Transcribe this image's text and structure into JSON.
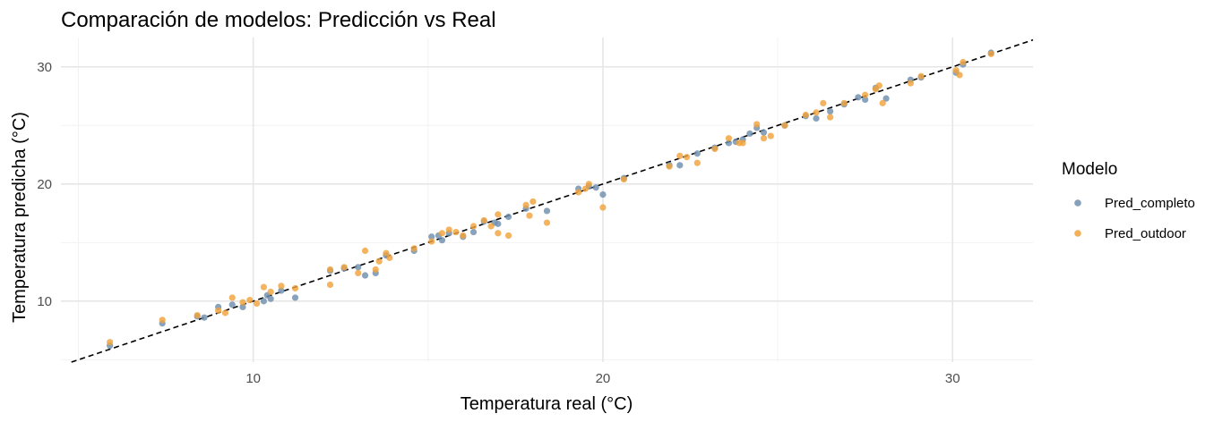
{
  "chart_data": {
    "type": "scatter",
    "title": "Comparación de modelos: Predicción vs Real",
    "xlabel": "Temperatura real (°C)",
    "ylabel": "Temperatura predicha (°C)",
    "xlim": [
      4.5,
      32.3
    ],
    "ylim": [
      4.8,
      32.5
    ],
    "x_ticks": [
      10,
      20,
      30
    ],
    "y_ticks": [
      10,
      20,
      30
    ],
    "grid": true,
    "reference_line": {
      "type": "identity",
      "style": "dashed",
      "color": "#000000"
    },
    "legend": {
      "title": "Modelo",
      "position": "right"
    },
    "series": [
      {
        "name": "Pred_completo",
        "color": "#6f8fae",
        "points": [
          [
            5.9,
            6.2
          ],
          [
            7.4,
            8.1
          ],
          [
            8.4,
            8.7
          ],
          [
            9.0,
            9.5
          ],
          [
            9.4,
            9.7
          ],
          [
            9.7,
            9.5
          ],
          [
            10.3,
            10.0
          ],
          [
            10.5,
            10.2
          ],
          [
            10.8,
            10.9
          ],
          [
            11.2,
            10.3
          ],
          [
            12.2,
            12.6
          ],
          [
            12.6,
            12.8
          ],
          [
            13.2,
            12.2
          ],
          [
            13.5,
            12.4
          ],
          [
            13.8,
            13.9
          ],
          [
            14.6,
            14.3
          ],
          [
            15.1,
            15.5
          ],
          [
            15.4,
            15.2
          ],
          [
            15.6,
            15.8
          ],
          [
            16.0,
            15.5
          ],
          [
            16.3,
            15.9
          ],
          [
            16.6,
            16.8
          ],
          [
            17.0,
            16.6
          ],
          [
            17.3,
            17.2
          ],
          [
            17.8,
            17.9
          ],
          [
            18.4,
            17.7
          ],
          [
            19.3,
            19.6
          ],
          [
            19.6,
            19.8
          ],
          [
            20.0,
            19.1
          ],
          [
            20.6,
            20.5
          ],
          [
            21.9,
            21.6
          ],
          [
            22.2,
            21.6
          ],
          [
            22.7,
            22.6
          ],
          [
            23.2,
            23.1
          ],
          [
            23.6,
            23.5
          ],
          [
            24.0,
            23.8
          ],
          [
            24.4,
            24.8
          ],
          [
            24.6,
            24.4
          ],
          [
            25.2,
            25.0
          ],
          [
            25.8,
            25.8
          ],
          [
            26.1,
            25.6
          ],
          [
            26.5,
            26.2
          ],
          [
            26.9,
            26.8
          ],
          [
            27.5,
            27.2
          ],
          [
            27.8,
            28.2
          ],
          [
            28.1,
            27.3
          ],
          [
            28.8,
            28.9
          ],
          [
            29.1,
            29.1
          ],
          [
            30.1,
            29.5
          ],
          [
            30.3,
            30.2
          ],
          [
            31.1,
            31.2
          ],
          [
            8.6,
            8.6
          ],
          [
            10.4,
            10.5
          ],
          [
            13.0,
            12.9
          ],
          [
            15.3,
            15.6
          ],
          [
            16.9,
            16.7
          ],
          [
            24.2,
            24.3
          ],
          [
            27.3,
            27.4
          ],
          [
            23.8,
            23.6
          ],
          [
            19.8,
            19.7
          ]
        ]
      },
      {
        "name": "Pred_outdoor",
        "color": "#f0a23c",
        "points": [
          [
            5.9,
            6.5
          ],
          [
            7.4,
            8.4
          ],
          [
            8.4,
            8.8
          ],
          [
            9.0,
            9.2
          ],
          [
            9.4,
            10.3
          ],
          [
            9.7,
            9.9
          ],
          [
            9.9,
            10.1
          ],
          [
            10.3,
            11.2
          ],
          [
            10.5,
            10.8
          ],
          [
            10.8,
            11.3
          ],
          [
            11.2,
            11.1
          ],
          [
            12.2,
            11.4
          ],
          [
            12.2,
            12.7
          ],
          [
            12.6,
            12.9
          ],
          [
            13.0,
            12.4
          ],
          [
            13.2,
            14.3
          ],
          [
            13.5,
            12.7
          ],
          [
            13.8,
            14.1
          ],
          [
            14.6,
            14.5
          ],
          [
            15.1,
            15.1
          ],
          [
            15.4,
            15.8
          ],
          [
            15.6,
            16.1
          ],
          [
            16.0,
            15.6
          ],
          [
            16.3,
            16.4
          ],
          [
            16.6,
            16.9
          ],
          [
            17.0,
            15.8
          ],
          [
            17.3,
            15.6
          ],
          [
            17.0,
            17.4
          ],
          [
            17.8,
            18.2
          ],
          [
            18.0,
            18.5
          ],
          [
            18.4,
            16.7
          ],
          [
            19.3,
            19.3
          ],
          [
            19.6,
            20.0
          ],
          [
            20.0,
            18.0
          ],
          [
            20.6,
            20.4
          ],
          [
            21.9,
            21.5
          ],
          [
            22.2,
            22.4
          ],
          [
            22.7,
            21.8
          ],
          [
            23.2,
            23.0
          ],
          [
            23.6,
            23.9
          ],
          [
            24.0,
            23.5
          ],
          [
            24.4,
            25.1
          ],
          [
            24.6,
            23.9
          ],
          [
            24.8,
            24.1
          ],
          [
            25.2,
            25.0
          ],
          [
            25.8,
            25.9
          ],
          [
            26.1,
            26.1
          ],
          [
            26.3,
            26.9
          ],
          [
            26.5,
            25.7
          ],
          [
            26.9,
            26.9
          ],
          [
            27.5,
            27.6
          ],
          [
            27.8,
            28.1
          ],
          [
            28.0,
            26.9
          ],
          [
            28.8,
            28.6
          ],
          [
            29.1,
            29.2
          ],
          [
            30.1,
            29.7
          ],
          [
            30.2,
            29.3
          ],
          [
            30.3,
            30.4
          ],
          [
            31.1,
            31.1
          ],
          [
            9.2,
            9.0
          ],
          [
            10.1,
            9.8
          ],
          [
            13.6,
            13.4
          ],
          [
            15.8,
            15.9
          ],
          [
            16.8,
            16.4
          ],
          [
            22.4,
            22.3
          ],
          [
            23.9,
            23.5
          ],
          [
            27.9,
            28.4
          ],
          [
            17.9,
            17.3
          ],
          [
            13.9,
            13.7
          ],
          [
            19.5,
            19.6
          ]
        ]
      }
    ]
  }
}
